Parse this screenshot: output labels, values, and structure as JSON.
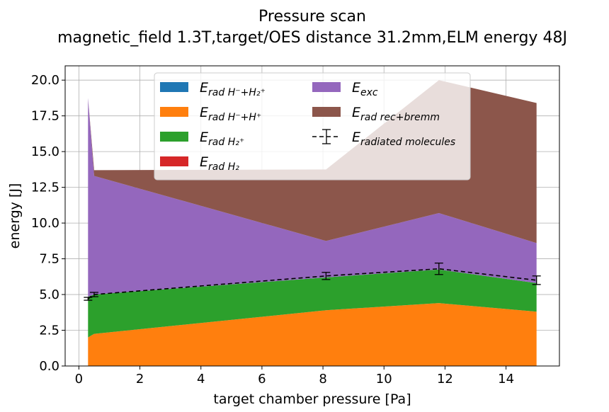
{
  "chart_data": {
    "type": "area",
    "title": "Pressure scan",
    "subtitle": "magnetic_field 1.3T,target/OES distance 31.2mm,ELM energy 48J",
    "xlabel": "target chamber pressure [Pa]",
    "ylabel": "energy [J]",
    "xlim": [
      -0.45,
      15.75
    ],
    "ylim": [
      0,
      21
    ],
    "xticks": [
      0,
      2,
      4,
      6,
      8,
      10,
      12,
      14
    ],
    "yticks": [
      0.0,
      2.5,
      5.0,
      7.5,
      10.0,
      12.5,
      15.0,
      17.5,
      20.0
    ],
    "ytick_labels": [
      "0.0",
      "2.5",
      "5.0",
      "7.5",
      "10.0",
      "12.5",
      "15.0",
      "17.5",
      "20.0"
    ],
    "grid": true,
    "legend_position": "upper center",
    "x": [
      0.3,
      0.5,
      8.1,
      11.8,
      15.0
    ],
    "series": [
      {
        "key": "hm_h2p",
        "name": "E_rad H⁻+H₂⁺",
        "color": "#1f77b4",
        "values": [
          0.0,
          0.0,
          0.0,
          0.0,
          0.0
        ]
      },
      {
        "key": "hm_hp",
        "name": "E_rad H⁻+H⁺",
        "color": "#ff7f0e",
        "values": [
          2.0,
          2.25,
          3.9,
          4.4,
          3.8
        ]
      },
      {
        "key": "h2p",
        "name": "E_rad H₂⁺",
        "color": "#2ca02c",
        "values": [
          2.85,
          2.75,
          2.3,
          2.35,
          2.0
        ]
      },
      {
        "key": "h2",
        "name": "E_rad H₂",
        "color": "#d62728",
        "values": [
          0.0,
          0.0,
          0.0,
          0.0,
          0.0
        ]
      },
      {
        "key": "exc",
        "name": "E_exc",
        "color": "#9467bd",
        "values": [
          13.9,
          8.3,
          2.55,
          3.95,
          2.8
        ]
      },
      {
        "key": "recbrem",
        "name": "E_rad rec+bremm",
        "color": "#8c564b",
        "values": [
          0.0,
          0.4,
          5.0,
          9.3,
          9.8
        ]
      }
    ],
    "errorbar": {
      "name": "E_radiated molecules",
      "x": [
        0.3,
        0.5,
        8.1,
        11.8,
        15.0
      ],
      "y": [
        4.7,
        5.0,
        6.3,
        6.8,
        6.0
      ],
      "yerr": [
        0.1,
        0.15,
        0.25,
        0.4,
        0.3
      ]
    }
  }
}
